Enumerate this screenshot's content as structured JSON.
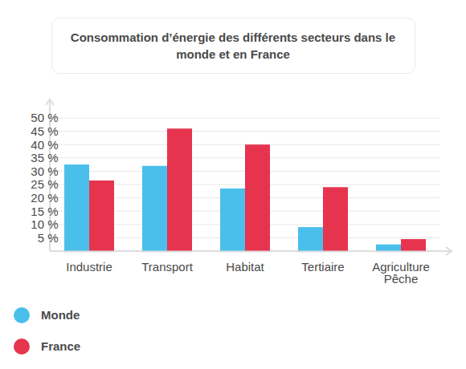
{
  "chart_data": {
    "type": "bar",
    "title": "Consommation d’énergie des différents secteurs dans le monde et en France",
    "categories": [
      "Industrie",
      "Transport",
      "Habitat",
      "Tertiaire",
      "Agriculture Pêche"
    ],
    "series": [
      {
        "name": "Monde",
        "color": "#4bbfeb",
        "values": [
          32.5,
          32,
          23.5,
          9,
          2.5
        ]
      },
      {
        "name": "France",
        "color": "#e6344f",
        "values": [
          26.5,
          46,
          40,
          24,
          4.5
        ]
      }
    ],
    "ylim": [
      0,
      50
    ],
    "yticks": [
      {
        "value": 5,
        "label": "5 %"
      },
      {
        "value": 10,
        "label": "10 %"
      },
      {
        "value": 15,
        "label": "15 %"
      },
      {
        "value": 20,
        "label": "20 %"
      },
      {
        "value": 25,
        "label": "25 %"
      },
      {
        "value": 30,
        "label": "30 %"
      },
      {
        "value": 35,
        "label": "35 %"
      },
      {
        "value": 40,
        "label": "40 %"
      },
      {
        "value": 45,
        "label": "45 %"
      },
      {
        "value": 50,
        "label": "50 %"
      }
    ],
    "grid": true,
    "legend": "bottom-left"
  }
}
